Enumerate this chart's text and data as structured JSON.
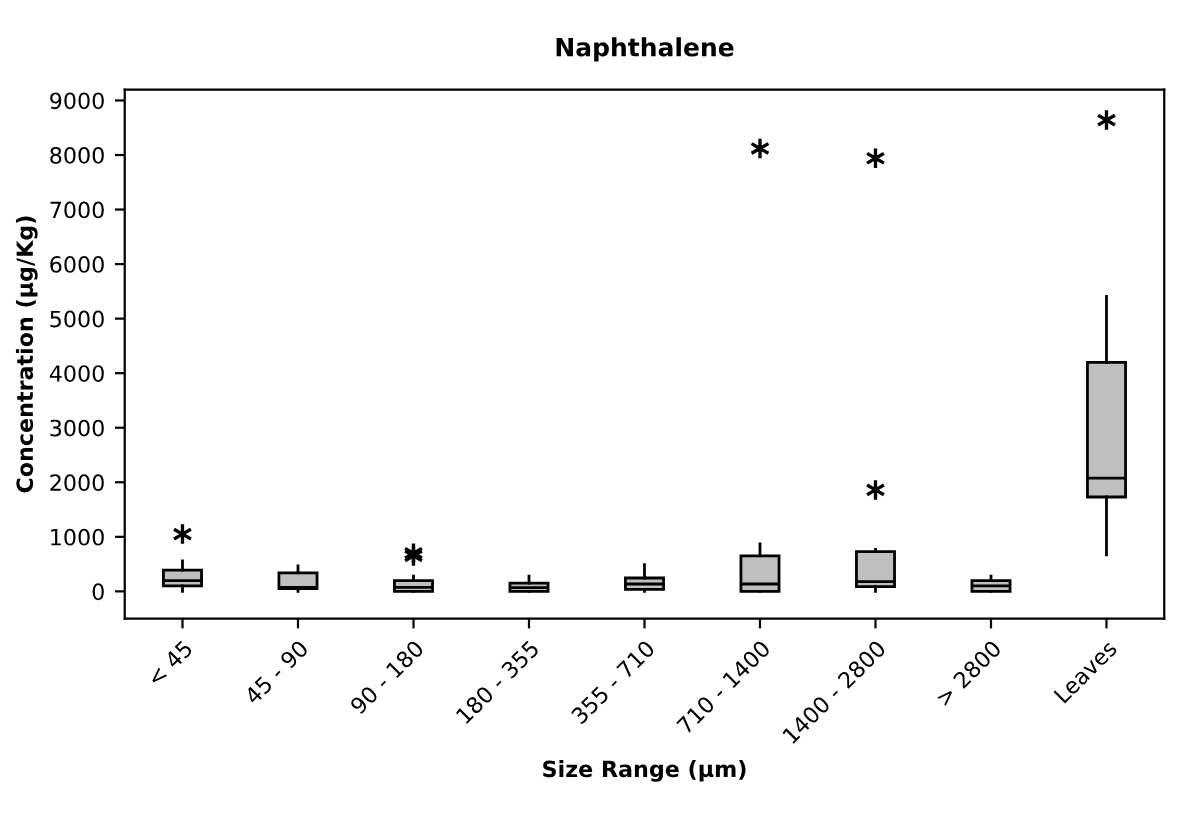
{
  "chart_data": {
    "type": "box",
    "title": "Naphthalene",
    "xlabel": "Size Range (µm)",
    "ylabel": "Concentration (µg/Kg)",
    "categories": [
      "< 45",
      "45 - 90",
      "90 - 180",
      "180 - 355",
      "355 - 710",
      "710 - 1400",
      "1400 - 2800",
      "> 2800",
      "Leaves"
    ],
    "color": "#bfbfbf",
    "boxes": [
      {
        "low": 0,
        "q1": 100,
        "median": 195,
        "q3": 390,
        "high": 560,
        "outliers": [
          1050
        ]
      },
      {
        "low": 0,
        "q1": 50,
        "median": 75,
        "q3": 340,
        "high": 465
      },
      {
        "low": 0,
        "q1": 0,
        "median": 75,
        "q3": 195,
        "high": 280,
        "outliers": [
          650,
          700
        ]
      },
      {
        "low": 0,
        "q1": 0,
        "median": 70,
        "q3": 150,
        "high": 280
      },
      {
        "low": 0,
        "q1": 35,
        "median": 135,
        "q3": 245,
        "high": 490
      },
      {
        "low": 0,
        "q1": 0,
        "median": 135,
        "q3": 650,
        "high": 870,
        "outliers": [
          8120
        ]
      },
      {
        "low": 0,
        "q1": 85,
        "median": 180,
        "q3": 730,
        "high": 770,
        "outliers": [
          1860,
          7940
        ]
      },
      {
        "low": 0,
        "q1": 0,
        "median": 100,
        "q3": 195,
        "high": 280
      },
      {
        "low": 670,
        "q1": 1730,
        "median": 2075,
        "q3": 4200,
        "high": 5410,
        "outliers": [
          8640
        ]
      }
    ],
    "ylim": [
      -500,
      9200
    ],
    "yticks": [
      0,
      1000,
      2000,
      3000,
      4000,
      5000,
      6000,
      7000,
      8000,
      9000
    ],
    "grid": false,
    "legend": false
  }
}
